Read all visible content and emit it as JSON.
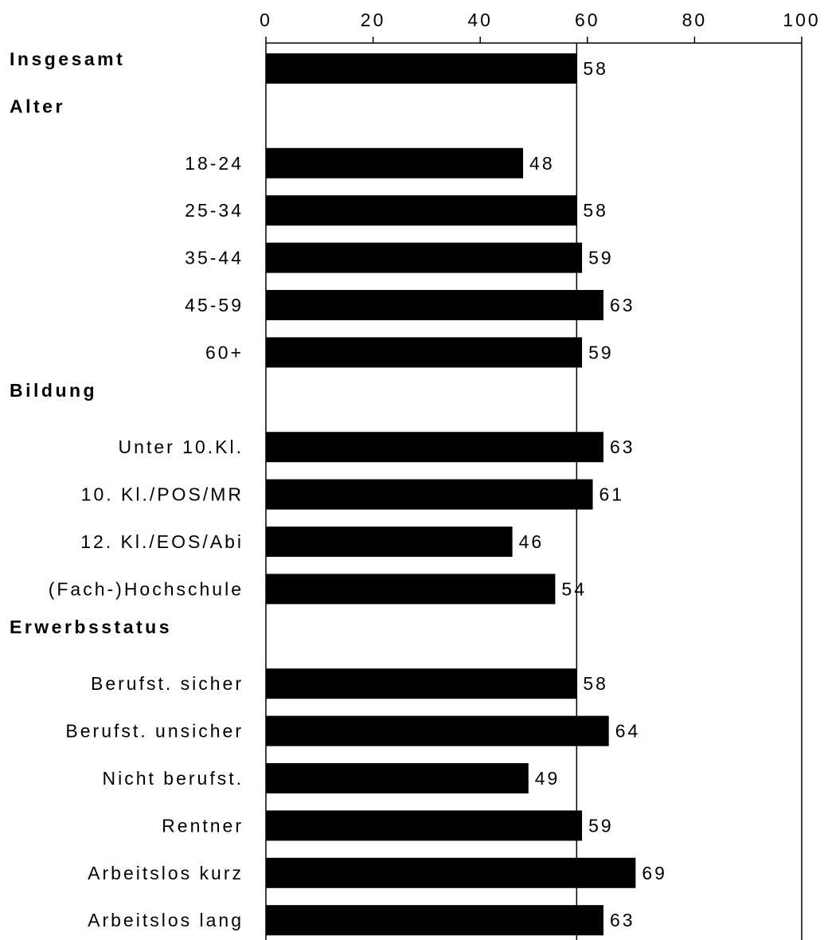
{
  "chart_data": {
    "type": "bar",
    "orientation": "horizontal",
    "xlim": [
      0,
      100
    ],
    "x_ticks": [
      "0",
      "20",
      "40",
      "60",
      "80",
      "100"
    ],
    "reference_line": 58,
    "bar_color": "#000000",
    "rows": [
      {
        "kind": "group",
        "label": "Insgesamt",
        "value": 58,
        "value_label": "58"
      },
      {
        "kind": "group",
        "label": "Alter"
      },
      {
        "kind": "category",
        "label": "18-24",
        "value": 48,
        "value_label": "48"
      },
      {
        "kind": "category",
        "label": "25-34",
        "value": 58,
        "value_label": "58"
      },
      {
        "kind": "category",
        "label": "35-44",
        "value": 59,
        "value_label": "59"
      },
      {
        "kind": "category",
        "label": "45-59",
        "value": 63,
        "value_label": "63"
      },
      {
        "kind": "category",
        "label": "60+",
        "value": 59,
        "value_label": "59"
      },
      {
        "kind": "group",
        "label": "Bildung"
      },
      {
        "kind": "category",
        "label": "Unter 10.Kl.",
        "value": 63,
        "value_label": "63"
      },
      {
        "kind": "category",
        "label": "10. Kl./POS/MR",
        "value": 61,
        "value_label": "61"
      },
      {
        "kind": "category",
        "label": "12. Kl./EOS/Abi",
        "value": 46,
        "value_label": "46"
      },
      {
        "kind": "category",
        "label": "(Fach-)Hochschule",
        "value": 54,
        "value_label": "54"
      },
      {
        "kind": "group",
        "label": "Erwerbsstatus"
      },
      {
        "kind": "category",
        "label": "Berufst. sicher",
        "value": 58,
        "value_label": "58"
      },
      {
        "kind": "category",
        "label": "Berufst. unsicher",
        "value": 64,
        "value_label": "64"
      },
      {
        "kind": "category",
        "label": "Nicht berufst.",
        "value": 49,
        "value_label": "49"
      },
      {
        "kind": "category",
        "label": "Rentner",
        "value": 59,
        "value_label": "59"
      },
      {
        "kind": "category",
        "label": "Arbeitslos kurz",
        "value": 69,
        "value_label": "69"
      },
      {
        "kind": "category",
        "label": "Arbeitslos lang",
        "value": 63,
        "value_label": "63"
      }
    ]
  }
}
